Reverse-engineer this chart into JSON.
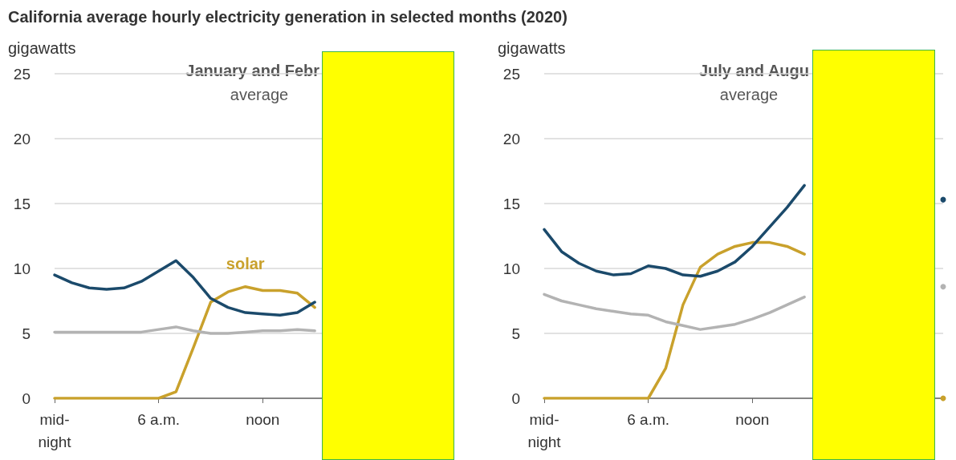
{
  "chart_data": [
    {
      "type": "line",
      "title": "California average hourly electricity generation in selected months (2020)",
      "subtitle": "January and Febr\naverage",
      "ylabel": "gigawatts",
      "categories": [
        "mid-\nnight",
        null,
        null,
        null,
        null,
        null,
        "6 a.m.",
        null,
        null,
        null,
        null,
        null,
        "noon",
        null,
        null,
        null,
        null,
        null,
        null,
        null,
        null,
        null,
        null,
        null
      ],
      "ylim": [
        0,
        25
      ],
      "yticks": [
        0,
        5,
        10,
        15,
        20,
        25
      ],
      "grid": "y",
      "legend": false,
      "marker": "none",
      "line_style": "solid",
      "series": [
        {
          "color": "#1b4a6b",
          "values": [
            9.5,
            8.9,
            8.5,
            8.4,
            8.5,
            9.0,
            9.8,
            10.6,
            9.3,
            7.7,
            7.0,
            6.6,
            6.5,
            6.4,
            6.6,
            7.4,
            null,
            null,
            null,
            null,
            null,
            null,
            null,
            null
          ]
        },
        {
          "color": "#b3b3b3",
          "values": [
            5.1,
            5.1,
            5.1,
            5.1,
            5.1,
            5.1,
            5.3,
            5.5,
            5.2,
            5.0,
            5.0,
            5.1,
            5.2,
            5.2,
            5.3,
            5.2,
            null,
            null,
            null,
            null,
            null,
            null,
            null,
            null
          ]
        },
        {
          "name": "solar",
          "color": "#c9a12c",
          "values": [
            0,
            0,
            0,
            0,
            0,
            0,
            0,
            0.5,
            3.9,
            7.4,
            8.2,
            8.6,
            8.3,
            8.3,
            8.1,
            7.0,
            null,
            null,
            null,
            null,
            null,
            null,
            null,
            null
          ]
        }
      ]
    },
    {
      "type": "line",
      "subtitle": "July and Augu\naverage",
      "ylabel": "gigawatts",
      "categories": [
        "mid-\nnight",
        null,
        null,
        null,
        null,
        null,
        "6 a.m.",
        null,
        null,
        null,
        null,
        null,
        "noon",
        null,
        null,
        null,
        null,
        null,
        null,
        null,
        null,
        null,
        null,
        null
      ],
      "ylim": [
        0,
        25
      ],
      "yticks": [
        0,
        5,
        10,
        15,
        20,
        25
      ],
      "grid": "y",
      "legend": false,
      "marker": "none",
      "line_style": "solid",
      "series": [
        {
          "color": "#1b4a6b",
          "values": [
            13.0,
            11.3,
            10.4,
            9.8,
            9.5,
            9.6,
            10.2,
            10.0,
            9.5,
            9.4,
            9.8,
            10.5,
            11.7,
            13.2,
            14.7,
            16.4,
            null,
            null,
            null,
            null,
            null,
            null,
            null,
            15.3
          ]
        },
        {
          "color": "#b3b3b3",
          "values": [
            8.0,
            7.5,
            7.2,
            6.9,
            6.7,
            6.5,
            6.4,
            5.9,
            5.6,
            5.3,
            5.5,
            5.7,
            6.1,
            6.6,
            7.2,
            7.8,
            null,
            null,
            null,
            null,
            null,
            null,
            null,
            8.6
          ]
        },
        {
          "color": "#c9a12c",
          "values": [
            0,
            0,
            0,
            0,
            0,
            0,
            0,
            2.3,
            7.2,
            10.1,
            11.1,
            11.7,
            12.0,
            12.0,
            11.7,
            11.1,
            null,
            null,
            null,
            null,
            null,
            null,
            null,
            0
          ]
        }
      ]
    }
  ]
}
